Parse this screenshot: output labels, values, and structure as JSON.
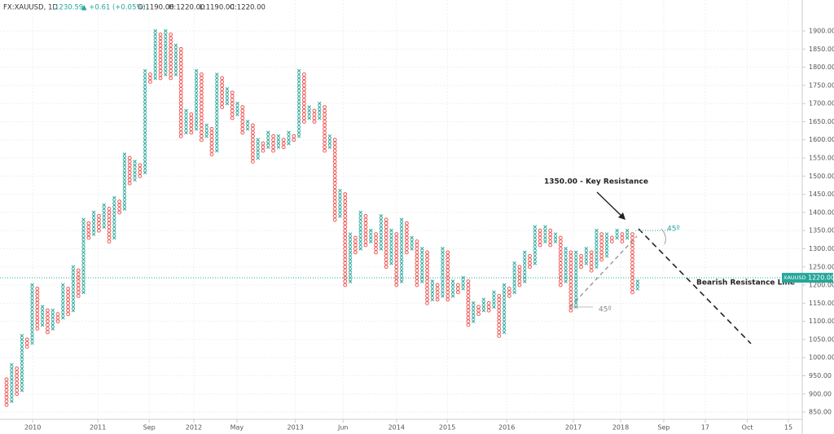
{
  "chart_data": {
    "type": "pointfigure",
    "header": {
      "symbol": "FX:XAUUSD, 1D",
      "price": "1230.59",
      "change": "▲ +0.61 (+0.05%)",
      "open": "O:1190.00",
      "high": "H:1220.00",
      "low": "L:1190.00",
      "close": "C:1220.00"
    },
    "box_size": 10,
    "x_colors": "#26a69a",
    "o_colors": "#ef5350",
    "kind": [
      "O",
      "X",
      "O",
      "X",
      "O",
      "X",
      "O",
      "X",
      "O",
      "X",
      "O",
      "X",
      "O",
      "X",
      "O",
      "X",
      "O",
      "X",
      "O",
      "X",
      "O",
      "X",
      "O",
      "X",
      "O",
      "X",
      "O",
      "X",
      "O",
      "X",
      "O",
      "X",
      "O",
      "X",
      "O",
      "X",
      "O",
      "X",
      "O",
      "X",
      "O",
      "X",
      "O",
      "X",
      "O",
      "X",
      "O",
      "X",
      "O",
      "X",
      "O",
      "X",
      "O",
      "X",
      "O",
      "X",
      "O",
      "X",
      "O",
      "X",
      "O",
      "X",
      "O",
      "X",
      "O",
      "X",
      "O",
      "X",
      "O",
      "X",
      "O",
      "X",
      "O",
      "X",
      "O",
      "X",
      "O",
      "X",
      "O",
      "X",
      "O",
      "X",
      "O",
      "X",
      "O",
      "X",
      "O",
      "X",
      "O",
      "X",
      "O",
      "X",
      "O",
      "X",
      "O",
      "X",
      "O",
      "X",
      "O",
      "X",
      "O",
      "X",
      "O",
      "X",
      "O",
      "X",
      "O",
      "X",
      "O",
      "X",
      "O",
      "X",
      "O",
      "X",
      "O",
      "X",
      "O",
      "X",
      "O",
      "X",
      "O",
      "X",
      "O",
      "X"
    ],
    "low": [
      870,
      880,
      900,
      910,
      1030,
      1040,
      1080,
      1090,
      1070,
      1080,
      1100,
      1110,
      1120,
      1130,
      1170,
      1180,
      1330,
      1340,
      1350,
      1360,
      1320,
      1330,
      1400,
      1410,
      1480,
      1490,
      1500,
      1510,
      1760,
      1770,
      1770,
      1780,
      1770,
      1780,
      1610,
      1620,
      1620,
      1630,
      1600,
      1610,
      1560,
      1570,
      1690,
      1700,
      1660,
      1670,
      1620,
      1630,
      1540,
      1550,
      1570,
      1580,
      1570,
      1580,
      1580,
      1590,
      1600,
      1610,
      1650,
      1660,
      1650,
      1660,
      1570,
      1580,
      1380,
      1390,
      1200,
      1210,
      1290,
      1300,
      1310,
      1320,
      1290,
      1300,
      1250,
      1260,
      1200,
      1210,
      1290,
      1300,
      1200,
      1210,
      1150,
      1160,
      1160,
      1170,
      1160,
      1170,
      1180,
      1190,
      1090,
      1100,
      1120,
      1130,
      1130,
      1140,
      1060,
      1070,
      1170,
      1180,
      1200,
      1210,
      1250,
      1260,
      1310,
      1320,
      1310,
      1320,
      1200,
      1210,
      1130,
      1140,
      1250,
      1260,
      1240,
      1250,
      1270,
      1280,
      1320,
      1330,
      1320,
      1330,
      1180,
      1190
    ],
    "high": [
      940,
      980,
      970,
      1060,
      1050,
      1200,
      1190,
      1140,
      1130,
      1130,
      1120,
      1200,
      1190,
      1250,
      1240,
      1380,
      1370,
      1400,
      1390,
      1420,
      1410,
      1440,
      1430,
      1560,
      1550,
      1540,
      1530,
      1790,
      1780,
      1900,
      1890,
      1900,
      1890,
      1860,
      1850,
      1680,
      1670,
      1790,
      1780,
      1640,
      1630,
      1780,
      1770,
      1740,
      1730,
      1700,
      1690,
      1650,
      1640,
      1600,
      1590,
      1620,
      1610,
      1610,
      1600,
      1620,
      1610,
      1790,
      1780,
      1690,
      1680,
      1700,
      1690,
      1610,
      1600,
      1460,
      1450,
      1340,
      1330,
      1400,
      1390,
      1350,
      1340,
      1390,
      1380,
      1350,
      1340,
      1380,
      1370,
      1330,
      1320,
      1300,
      1290,
      1210,
      1200,
      1300,
      1290,
      1210,
      1200,
      1220,
      1210,
      1150,
      1140,
      1160,
      1150,
      1180,
      1170,
      1200,
      1190,
      1260,
      1250,
      1290,
      1280,
      1360,
      1350,
      1360,
      1350,
      1340,
      1330,
      1300,
      1290,
      1290,
      1280,
      1300,
      1290,
      1350,
      1340,
      1340,
      1330,
      1350,
      1340,
      1350,
      1340,
      1210
    ],
    "xlim": [
      -0.8,
      155.1
    ],
    "xticks": [
      {
        "value": 5.1,
        "label": "2010"
      },
      {
        "value": 17.8,
        "label": "2011"
      },
      {
        "value": 27.8,
        "label": "Sep"
      },
      {
        "value": 36.5,
        "label": "2012"
      },
      {
        "value": 44.9,
        "label": "May"
      },
      {
        "value": 56.3,
        "label": "2013"
      },
      {
        "value": 65.6,
        "label": "Jun"
      },
      {
        "value": 76.0,
        "label": "2014"
      },
      {
        "value": 85.9,
        "label": "2015"
      },
      {
        "value": 97.5,
        "label": "2016"
      },
      {
        "value": 110.5,
        "label": "2017"
      },
      {
        "value": 119.7,
        "label": "2018"
      },
      {
        "value": 128.1,
        "label": "Sep"
      },
      {
        "value": 136.2,
        "label": "17"
      },
      {
        "value": 144.4,
        "label": "Oct"
      },
      {
        "value": 152.4,
        "label": "15"
      }
    ],
    "ylim": [
      830,
      1930
    ],
    "yticks": [
      {
        "value": 850,
        "label": "850.00"
      },
      {
        "value": 900,
        "label": "900.00"
      },
      {
        "value": 950,
        "label": "950.00"
      },
      {
        "value": 1000,
        "label": "1000.00"
      },
      {
        "value": 1050,
        "label": "1050.00"
      },
      {
        "value": 1100,
        "label": "1100.00"
      },
      {
        "value": 1150,
        "label": "1150.00"
      },
      {
        "value": 1200,
        "label": "1200.00"
      },
      {
        "value": 1250,
        "label": "1250.00"
      },
      {
        "value": 1300,
        "label": "1300.00"
      },
      {
        "value": 1350,
        "label": "1350.00"
      },
      {
        "value": 1400,
        "label": "1400.00"
      },
      {
        "value": 1450,
        "label": "1450.00"
      },
      {
        "value": 1500,
        "label": "1500.00"
      },
      {
        "value": 1550,
        "label": "1550.00"
      },
      {
        "value": 1600,
        "label": "1600.00"
      },
      {
        "value": 1650,
        "label": "1650.00"
      },
      {
        "value": 1700,
        "label": "1700.00"
      },
      {
        "value": 1750,
        "label": "1750.00"
      },
      {
        "value": 1800,
        "label": "1800.00"
      },
      {
        "value": 1850,
        "label": "1850.00"
      },
      {
        "value": 1900,
        "label": "1900.00"
      }
    ],
    "grid": true,
    "price_line": {
      "value": 1220,
      "label": "1220.00",
      "symbol": "XAUUSD",
      "color": "#26a69a"
    },
    "resistance": {
      "value": 1350,
      "label": "1350.00 - Key Resistance"
    },
    "trend_label": "Bearish Resistance Line",
    "angle_labels": [
      "45º",
      "45º"
    ]
  }
}
